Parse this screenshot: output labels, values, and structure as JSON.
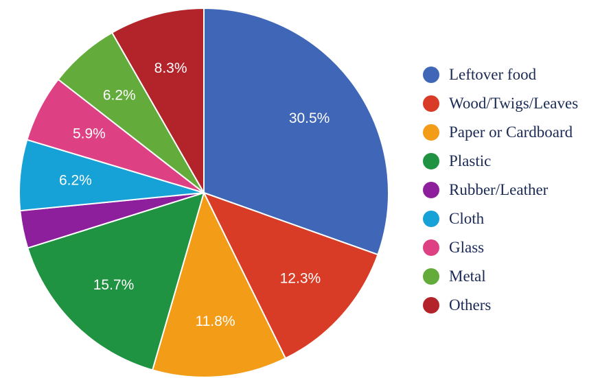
{
  "chart_data": {
    "type": "pie",
    "start_angle_deg": 0,
    "direction": "clockwise",
    "legend_position": "right",
    "slices": [
      {
        "name": "Leftover food",
        "value": 30.5,
        "label": "30.5%",
        "color": "#3f66b7"
      },
      {
        "name": "Wood/Twigs/Leaves",
        "value": 12.3,
        "label": "12.3%",
        "color": "#d93c26"
      },
      {
        "name": "Paper or Cardboard",
        "value": 11.8,
        "label": "11.8%",
        "color": "#f39c17"
      },
      {
        "name": "Plastic",
        "value": 15.7,
        "label": "15.7%",
        "color": "#1f9341"
      },
      {
        "name": "Rubber/Leather",
        "value": 3.3,
        "label": "",
        "color": "#8e1f9c"
      },
      {
        "name": "Cloth",
        "value": 6.2,
        "label": "6.2%",
        "color": "#16a2d6"
      },
      {
        "name": "Glass",
        "value": 5.9,
        "label": "5.9%",
        "color": "#de4183"
      },
      {
        "name": "Metal",
        "value": 6.2,
        "label": "6.2%",
        "color": "#63ac3c"
      },
      {
        "name": "Others",
        "value": 8.3,
        "label": "8.3%",
        "color": "#b3232a"
      }
    ]
  }
}
